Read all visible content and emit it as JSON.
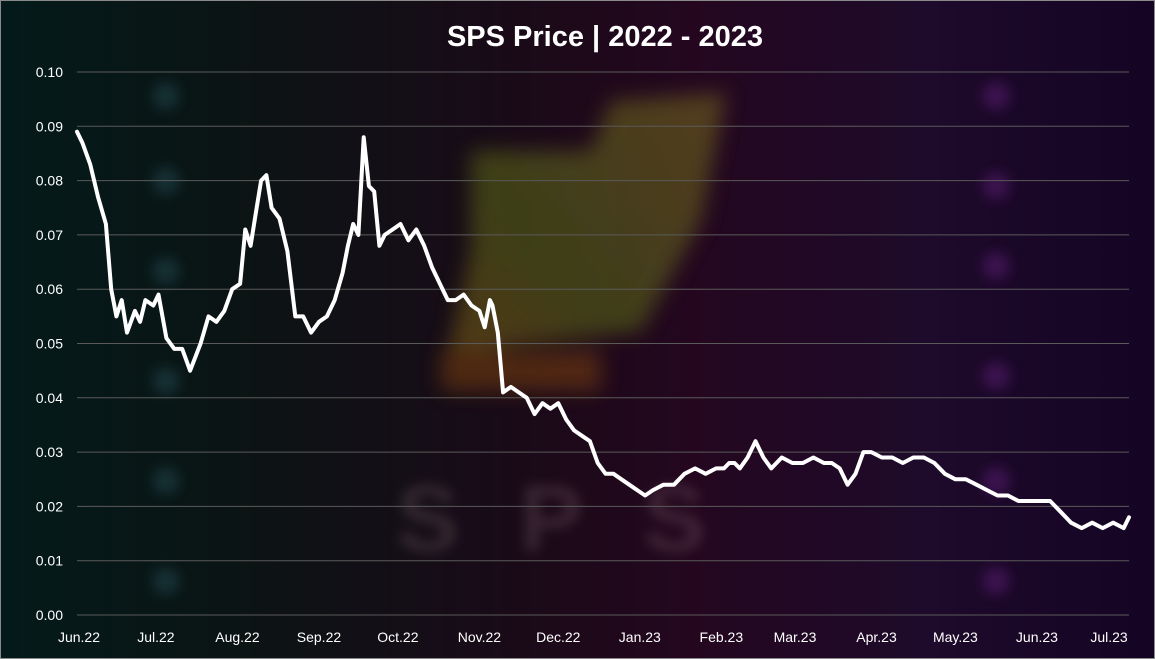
{
  "chart_data": {
    "type": "line",
    "title": "SPS Price | 2022 - 2023",
    "xlabel": "",
    "ylabel": "",
    "ylim": [
      0,
      0.1
    ],
    "grid": true,
    "yticks": [
      "0.00",
      "0.01",
      "0.02",
      "0.03",
      "0.04",
      "0.05",
      "0.06",
      "0.07",
      "0.08",
      "0.09",
      "0.10"
    ],
    "xticks": [
      "Jun.22",
      "Jul.22",
      "Aug.22",
      "Sep.22",
      "Oct.22",
      "Nov.22",
      "Dec.22",
      "Jan.23",
      "Feb.23",
      "Mar.23",
      "Apr.23",
      "May.23",
      "Jun.23",
      "Jul.23"
    ],
    "line_color": "#ffffff",
    "watermark_text": "SPS",
    "series": [
      {
        "x": [
          "2022-06-01",
          "2022-06-03",
          "2022-06-06",
          "2022-06-09",
          "2022-06-12",
          "2022-06-14",
          "2022-06-16",
          "2022-06-18",
          "2022-06-20",
          "2022-06-23",
          "2022-06-25",
          "2022-06-27",
          "2022-06-30",
          "2022-07-02",
          "2022-07-05",
          "2022-07-08",
          "2022-07-11",
          "2022-07-14",
          "2022-07-18",
          "2022-07-21",
          "2022-07-24",
          "2022-07-27",
          "2022-07-30",
          "2022-08-02",
          "2022-08-04",
          "2022-08-06",
          "2022-08-08",
          "2022-08-10",
          "2022-08-12",
          "2022-08-14",
          "2022-08-17",
          "2022-08-20",
          "2022-08-23",
          "2022-08-26",
          "2022-08-29",
          "2022-09-01",
          "2022-09-04",
          "2022-09-07",
          "2022-09-10",
          "2022-09-12",
          "2022-09-14",
          "2022-09-16",
          "2022-09-18",
          "2022-09-20",
          "2022-09-22",
          "2022-09-24",
          "2022-09-26",
          "2022-09-29",
          "2022-10-02",
          "2022-10-05",
          "2022-10-08",
          "2022-10-11",
          "2022-10-14",
          "2022-10-17",
          "2022-10-20",
          "2022-10-23",
          "2022-10-26",
          "2022-10-29",
          "2022-11-01",
          "2022-11-03",
          "2022-11-05",
          "2022-11-06",
          "2022-11-08",
          "2022-11-10",
          "2022-11-13",
          "2022-11-16",
          "2022-11-19",
          "2022-11-22",
          "2022-11-25",
          "2022-11-28",
          "2022-12-01",
          "2022-12-04",
          "2022-12-07",
          "2022-12-10",
          "2022-12-13",
          "2022-12-16",
          "2022-12-19",
          "2022-12-22",
          "2022-12-25",
          "2022-12-28",
          "2022-12-31",
          "2023-01-03",
          "2023-01-06",
          "2023-01-10",
          "2023-01-14",
          "2023-01-18",
          "2023-01-22",
          "2023-01-26",
          "2023-01-30",
          "2023-02-02",
          "2023-02-04",
          "2023-02-06",
          "2023-02-08",
          "2023-02-11",
          "2023-02-14",
          "2023-02-17",
          "2023-02-20",
          "2023-02-24",
          "2023-02-28",
          "2023-03-04",
          "2023-03-08",
          "2023-03-12",
          "2023-03-15",
          "2023-03-18",
          "2023-03-21",
          "2023-03-24",
          "2023-03-27",
          "2023-03-30",
          "2023-04-03",
          "2023-04-07",
          "2023-04-11",
          "2023-04-15",
          "2023-04-19",
          "2023-04-23",
          "2023-04-27",
          "2023-05-01",
          "2023-05-05",
          "2023-05-09",
          "2023-05-13",
          "2023-05-17",
          "2023-05-21",
          "2023-05-25",
          "2023-05-29",
          "2023-06-02",
          "2023-06-06",
          "2023-06-10",
          "2023-06-14",
          "2023-06-18",
          "2023-06-22",
          "2023-06-26",
          "2023-06-30",
          "2023-07-04",
          "2023-07-06"
        ],
        "values": [
          0.089,
          0.087,
          0.083,
          0.077,
          0.072,
          0.06,
          0.055,
          0.058,
          0.052,
          0.056,
          0.054,
          0.058,
          0.057,
          0.059,
          0.051,
          0.049,
          0.049,
          0.045,
          0.05,
          0.055,
          0.054,
          0.056,
          0.06,
          0.061,
          0.071,
          0.068,
          0.074,
          0.08,
          0.081,
          0.075,
          0.073,
          0.067,
          0.055,
          0.055,
          0.052,
          0.054,
          0.055,
          0.058,
          0.063,
          0.068,
          0.072,
          0.07,
          0.088,
          0.079,
          0.078,
          0.068,
          0.07,
          0.071,
          0.072,
          0.069,
          0.071,
          0.068,
          0.064,
          0.061,
          0.058,
          0.058,
          0.059,
          0.057,
          0.056,
          0.053,
          0.058,
          0.057,
          0.052,
          0.041,
          0.042,
          0.041,
          0.04,
          0.037,
          0.039,
          0.038,
          0.039,
          0.036,
          0.034,
          0.033,
          0.032,
          0.028,
          0.026,
          0.026,
          0.025,
          0.024,
          0.023,
          0.022,
          0.023,
          0.024,
          0.024,
          0.026,
          0.027,
          0.026,
          0.027,
          0.027,
          0.028,
          0.028,
          0.027,
          0.029,
          0.032,
          0.029,
          0.027,
          0.029,
          0.028,
          0.028,
          0.029,
          0.028,
          0.028,
          0.027,
          0.024,
          0.026,
          0.03,
          0.03,
          0.029,
          0.029,
          0.028,
          0.029,
          0.029,
          0.028,
          0.026,
          0.025,
          0.025,
          0.024,
          0.023,
          0.022,
          0.022,
          0.021,
          0.021,
          0.021,
          0.021,
          0.019,
          0.017,
          0.016,
          0.017,
          0.016,
          0.017,
          0.016,
          0.018
        ]
      }
    ]
  }
}
